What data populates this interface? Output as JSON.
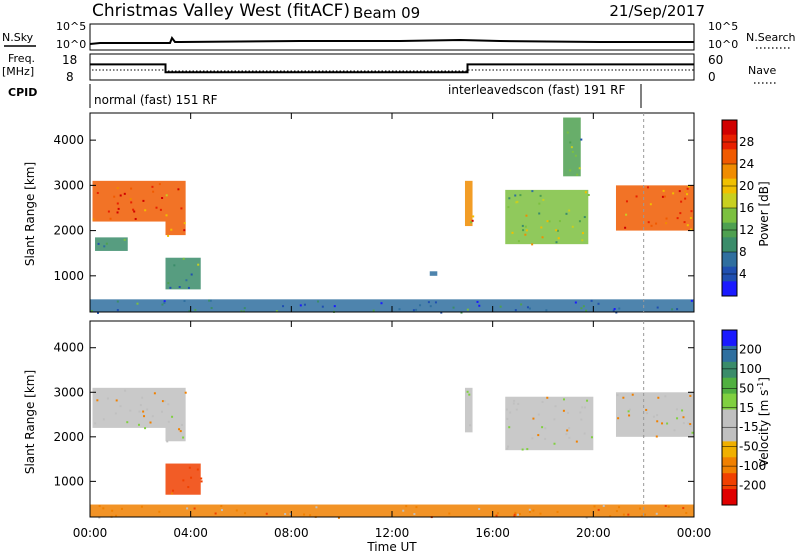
{
  "header": {
    "title": "Christmas Valley West (fitACF)",
    "beam": "Beam 09",
    "date": "21/Sep/2017"
  },
  "colors": {
    "power_scale": [
      "#1a1aff",
      "#1f4fb0",
      "#2f6f9f",
      "#3a8c6a",
      "#4ea050",
      "#7cc040",
      "#c8d020",
      "#f0c000",
      "#f08c00",
      "#f05a00",
      "#e82000",
      "#d00000"
    ],
    "velocity_scale": [
      "#e00000",
      "#f04000",
      "#f08000",
      "#f0b000",
      "#c0c0c0",
      "#c0c0c0",
      "#80d040",
      "#50b040",
      "#3a8c6a",
      "#2f6f9f",
      "#1a1aff"
    ]
  },
  "top_panel": {
    "nsky_label": "N.Sky",
    "nsearch_label": "N.Search",
    "left_ticks": [
      "10^5",
      "10^0"
    ],
    "right_ticks": [
      "10^5",
      "10^0"
    ],
    "freq_label_1": "Freq.",
    "freq_label_2": "[MHz]",
    "freq_ticks": [
      "18",
      "8"
    ],
    "nave_label": "Nave",
    "nave_ticks": [
      "60",
      "0"
    ],
    "cpid_label": "CPID",
    "cpid_1": "normal (fast) 151 RF",
    "cpid_2": "interleavedscon (fast) 191 RF"
  },
  "x_axis": {
    "label": "Time UT",
    "ticks": [
      "00:00",
      "04:00",
      "08:00",
      "12:00",
      "16:00",
      "20:00",
      "00:00"
    ]
  },
  "y_axis": {
    "label": "Slant Range [km]",
    "ticks": [
      "1000",
      "2000",
      "3000",
      "4000"
    ]
  },
  "power_colorbar": {
    "label": "Power [dB]",
    "ticks": [
      "4",
      "8",
      "12",
      "16",
      "20",
      "24",
      "28"
    ]
  },
  "velocity_colorbar": {
    "label_main": "Velocity [m s",
    "label_sup": "-1",
    "label_end": "]",
    "ticks": [
      "200",
      "100",
      "50",
      "15",
      "-15",
      "-50",
      "-100",
      "-200"
    ]
  },
  "chart_data": {
    "type": "heatmap",
    "title": "Christmas Valley West (fitACF)",
    "xlabel": "Time UT",
    "ylabel": "Slant Range [km]",
    "xlim": [
      0,
      24
    ],
    "ylim": [
      200,
      4600
    ],
    "frequency_segments_mhz": [
      {
        "t0": 0,
        "t1": 3,
        "value": 14
      },
      {
        "t0": 3,
        "t1": 15,
        "value": 11
      },
      {
        "t0": 15,
        "t1": 24,
        "value": 14
      }
    ],
    "cpid_segments": [
      {
        "t0": 0,
        "t1": 22,
        "name": "normal (fast) 151 RF"
      },
      {
        "t0": 15,
        "t1": 22,
        "name": "interleavedscon (fast) 191 RF"
      }
    ],
    "power_blobs_db": [
      {
        "t0": 0.1,
        "t1": 3.0,
        "r0": 2200,
        "r1": 3100,
        "value": 26
      },
      {
        "t0": 0.2,
        "t1": 1.5,
        "r0": 1550,
        "r1": 1850,
        "value": 9
      },
      {
        "t0": 3.0,
        "t1": 3.8,
        "r0": 1900,
        "r1": 3100,
        "value": 24
      },
      {
        "t0": 3.0,
        "t1": 4.4,
        "r0": 700,
        "r1": 1400,
        "value": 10
      },
      {
        "t0": 13.5,
        "t1": 13.8,
        "r0": 1000,
        "r1": 1100,
        "value": 7
      },
      {
        "t0": 14.9,
        "t1": 15.2,
        "r0": 2100,
        "r1": 3100,
        "value": 22
      },
      {
        "t0": 16.5,
        "t1": 19.8,
        "r0": 1700,
        "r1": 2900,
        "value": 15
      },
      {
        "t0": 18.8,
        "t1": 19.5,
        "r0": 3200,
        "r1": 4500,
        "value": 11
      },
      {
        "t0": 20.9,
        "t1": 24.0,
        "r0": 2000,
        "r1": 3000,
        "value": 25
      },
      {
        "t0": 0.0,
        "t1": 24.0,
        "r0": 200,
        "r1": 480,
        "value": 8
      }
    ],
    "velocity_blobs_ms": [
      {
        "t0": 0.1,
        "t1": 3.0,
        "r0": 2200,
        "r1": 3100,
        "value": 0
      },
      {
        "t0": 3.0,
        "t1": 3.8,
        "r0": 1900,
        "r1": 3100,
        "value": 0
      },
      {
        "t0": 3.0,
        "t1": 4.4,
        "r0": 700,
        "r1": 1400,
        "value": -60
      },
      {
        "t0": 14.9,
        "t1": 15.2,
        "r0": 2100,
        "r1": 3100,
        "value": 10
      },
      {
        "t0": 16.5,
        "t1": 20.0,
        "r0": 1700,
        "r1": 2900,
        "value": 0
      },
      {
        "t0": 20.9,
        "t1": 24.0,
        "r0": 2000,
        "r1": 3000,
        "value": 0
      },
      {
        "t0": 0.0,
        "t1": 24.0,
        "r0": 200,
        "r1": 480,
        "value": -30
      }
    ]
  }
}
